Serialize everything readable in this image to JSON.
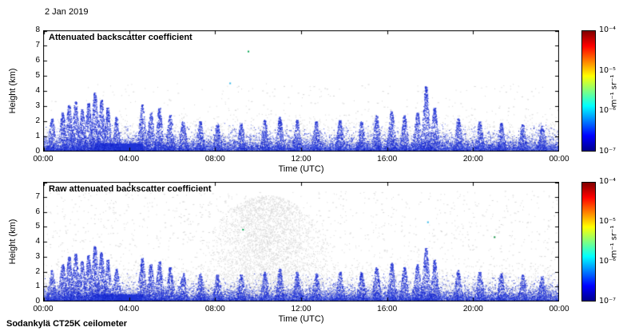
{
  "figure": {
    "date_label": "2 Jan 2019",
    "footer_label": "Sodankylä CT25K ceilometer"
  },
  "chart_data": [
    {
      "type": "heatmap",
      "title": "Attenuated backscatter coefficient",
      "xlabel": "Time (UTC)",
      "ylabel": "Height (km)",
      "x_tick_labels": [
        "00:00",
        "04:00",
        "08:00",
        "12:00",
        "16:00",
        "20:00",
        "00:00"
      ],
      "x_tick_hours": [
        0,
        4,
        8,
        12,
        16,
        20,
        24
      ],
      "xlim_hours": [
        0,
        24
      ],
      "y_tick_values": [
        0,
        1,
        2,
        3,
        4,
        5,
        6,
        7,
        8
      ],
      "ylim": [
        0,
        8
      ],
      "grid": false,
      "colorbar": {
        "label": "m⁻¹ sr⁻¹",
        "tick_labels": [
          "10⁻⁴",
          "10⁻⁵",
          "10⁻⁶",
          "10⁻⁷"
        ],
        "range": [
          "1e-7",
          "1e-4"
        ],
        "stops": [
          {
            "p": 0,
            "c": "#00008f"
          },
          {
            "p": 12.5,
            "c": "#0000ff"
          },
          {
            "p": 37.5,
            "c": "#00ffff"
          },
          {
            "p": 62.5,
            "c": "#ffff00"
          },
          {
            "p": 87.5,
            "c": "#ff0000"
          },
          {
            "p": 100,
            "c": "#800000"
          }
        ]
      },
      "note": "Boundary-layer aerosol backscatter up to ~2 km with blue plumes to 3-4 km; strongest plume near 18:00 UTC reaching ~4.3 km; faint gray speckle above.",
      "field": {
        "seed": 42,
        "gray": {
          "count": 9000,
          "scale_km": 0.55,
          "max_km": 2.5,
          "color": "#d4d4d4"
        },
        "gray_sparse": {
          "count": 400,
          "max_km": 4.5,
          "color": "#d4d4d4"
        },
        "blue_band": {
          "count": 15000,
          "scale_km": 0.33,
          "max_km": 1.9,
          "colors": [
            "#1f33d4",
            "#4257e6",
            "#8093f0",
            "#101ec0"
          ]
        },
        "dense_low": {
          "t0": 2.4,
          "t1": 4.6,
          "count": 2600,
          "max_km": 0.55,
          "color": "#2236d6"
        },
        "spike_density": 120,
        "spike_colors": [
          "#1726cc",
          "#3e54e4"
        ],
        "spikes": [
          [
            0.4,
            2.2
          ],
          [
            0.9,
            2.6
          ],
          [
            1.2,
            3.1
          ],
          [
            1.5,
            3.3
          ],
          [
            1.8,
            2.8
          ],
          [
            2.1,
            3.2
          ],
          [
            2.4,
            3.9
          ],
          [
            2.7,
            3.4
          ],
          [
            3.0,
            2.9
          ],
          [
            3.4,
            2.3
          ],
          [
            4.6,
            3.1
          ],
          [
            5.0,
            2.6
          ],
          [
            5.4,
            2.9
          ],
          [
            5.9,
            2.4
          ],
          [
            6.5,
            2.0
          ],
          [
            7.3,
            2.0
          ],
          [
            8.1,
            1.8
          ],
          [
            9.2,
            1.9
          ],
          [
            10.3,
            2.1
          ],
          [
            11.0,
            2.3
          ],
          [
            11.8,
            2.1
          ],
          [
            12.7,
            2.0
          ],
          [
            13.8,
            2.1
          ],
          [
            14.8,
            2.0
          ],
          [
            15.5,
            2.4
          ],
          [
            16.2,
            2.7
          ],
          [
            16.8,
            2.4
          ],
          [
            17.4,
            2.6
          ],
          [
            17.8,
            4.3
          ],
          [
            18.2,
            2.9
          ],
          [
            19.3,
            2.2
          ],
          [
            20.3,
            2.0
          ],
          [
            21.3,
            1.9
          ],
          [
            22.3,
            1.8
          ],
          [
            23.2,
            1.7
          ]
        ],
        "specks": [
          {
            "t": 9.55,
            "km": 6.6,
            "color": "#00a550"
          },
          {
            "t": 8.7,
            "km": 4.5,
            "color": "#35b8e8"
          }
        ]
      }
    },
    {
      "type": "heatmap",
      "title": "Raw attenuated backscatter coefficient",
      "xlabel": "Time (UTC)",
      "ylabel": "Height (km)",
      "x_tick_labels": [
        "00:00",
        "04:00",
        "08:00",
        "12:00",
        "16:00",
        "20:00",
        "00:00"
      ],
      "x_tick_hours": [
        0,
        4,
        8,
        12,
        16,
        20,
        24
      ],
      "xlim_hours": [
        0,
        24
      ],
      "y_tick_values": [
        0,
        1,
        2,
        3,
        4,
        5,
        6,
        7
      ],
      "ylim": [
        0,
        8
      ],
      "grid": false,
      "colorbar": {
        "label": "m⁻¹ sr⁻¹",
        "tick_labels": [
          "10⁻⁴",
          "10⁻⁵",
          "10⁻⁶",
          "10⁻⁷"
        ],
        "range": [
          "1e-7",
          "1e-4"
        ],
        "stops": [
          {
            "p": 0,
            "c": "#00008f"
          },
          {
            "p": 12.5,
            "c": "#0000ff"
          },
          {
            "p": 37.5,
            "c": "#00ffff"
          },
          {
            "p": 62.5,
            "c": "#ffff00"
          },
          {
            "p": 87.5,
            "c": "#ff0000"
          },
          {
            "p": 100,
            "c": "#800000"
          }
        ]
      },
      "note": "Raw signal: same blue aerosol plumes plus broad gray noise cloud between ~08:00 and ~13:30 UTC extending to ~7 km and sparse gray noise at all heights.",
      "field": {
        "seed": 137,
        "gray": {
          "count": 11000,
          "scale_km": 0.6,
          "max_km": 2.6,
          "color": "#d4d4d4"
        },
        "gray_sparse": {
          "count": 1500,
          "max_km": 7.4,
          "color": "#d6d6d6"
        },
        "diffuse": {
          "center": 10.4,
          "half": 3.4,
          "count": 3200,
          "max_km": 7.1,
          "color": "#d8d8d8"
        },
        "blue_band": {
          "count": 14000,
          "scale_km": 0.33,
          "max_km": 1.9,
          "colors": [
            "#1f33d4",
            "#4257e6",
            "#8093f0",
            "#101ec0"
          ]
        },
        "dense_low": {
          "t0": 2.4,
          "t1": 4.6,
          "count": 2200,
          "max_km": 0.5,
          "color": "#2236d6"
        },
        "spike_density": 120,
        "spike_colors": [
          "#1726cc",
          "#3e54e4"
        ],
        "spikes": [
          [
            0.4,
            2.1
          ],
          [
            0.9,
            2.5
          ],
          [
            1.2,
            3.0
          ],
          [
            1.5,
            3.2
          ],
          [
            1.8,
            2.7
          ],
          [
            2.1,
            3.1
          ],
          [
            2.4,
            3.7
          ],
          [
            2.7,
            3.3
          ],
          [
            3.0,
            2.8
          ],
          [
            3.4,
            2.2
          ],
          [
            4.6,
            2.9
          ],
          [
            5.0,
            2.5
          ],
          [
            5.4,
            2.7
          ],
          [
            5.9,
            2.3
          ],
          [
            6.5,
            1.9
          ],
          [
            7.3,
            1.9
          ],
          [
            8.1,
            1.8
          ],
          [
            9.2,
            1.8
          ],
          [
            10.3,
            2.0
          ],
          [
            11.0,
            2.2
          ],
          [
            11.8,
            2.0
          ],
          [
            12.7,
            1.9
          ],
          [
            13.8,
            2.0
          ],
          [
            14.8,
            2.0
          ],
          [
            15.5,
            2.3
          ],
          [
            16.2,
            2.6
          ],
          [
            16.8,
            2.3
          ],
          [
            17.4,
            2.5
          ],
          [
            17.8,
            3.6
          ],
          [
            18.2,
            2.8
          ],
          [
            19.3,
            2.1
          ],
          [
            20.3,
            2.0
          ],
          [
            21.3,
            1.9
          ],
          [
            22.3,
            1.8
          ],
          [
            23.2,
            1.7
          ]
        ],
        "specks": [
          {
            "t": 9.3,
            "km": 4.8,
            "color": "#00a550"
          },
          {
            "t": 21.0,
            "km": 4.3,
            "color": "#0a8a3a"
          },
          {
            "t": 17.9,
            "km": 5.3,
            "color": "#35b8e8"
          }
        ]
      }
    }
  ]
}
